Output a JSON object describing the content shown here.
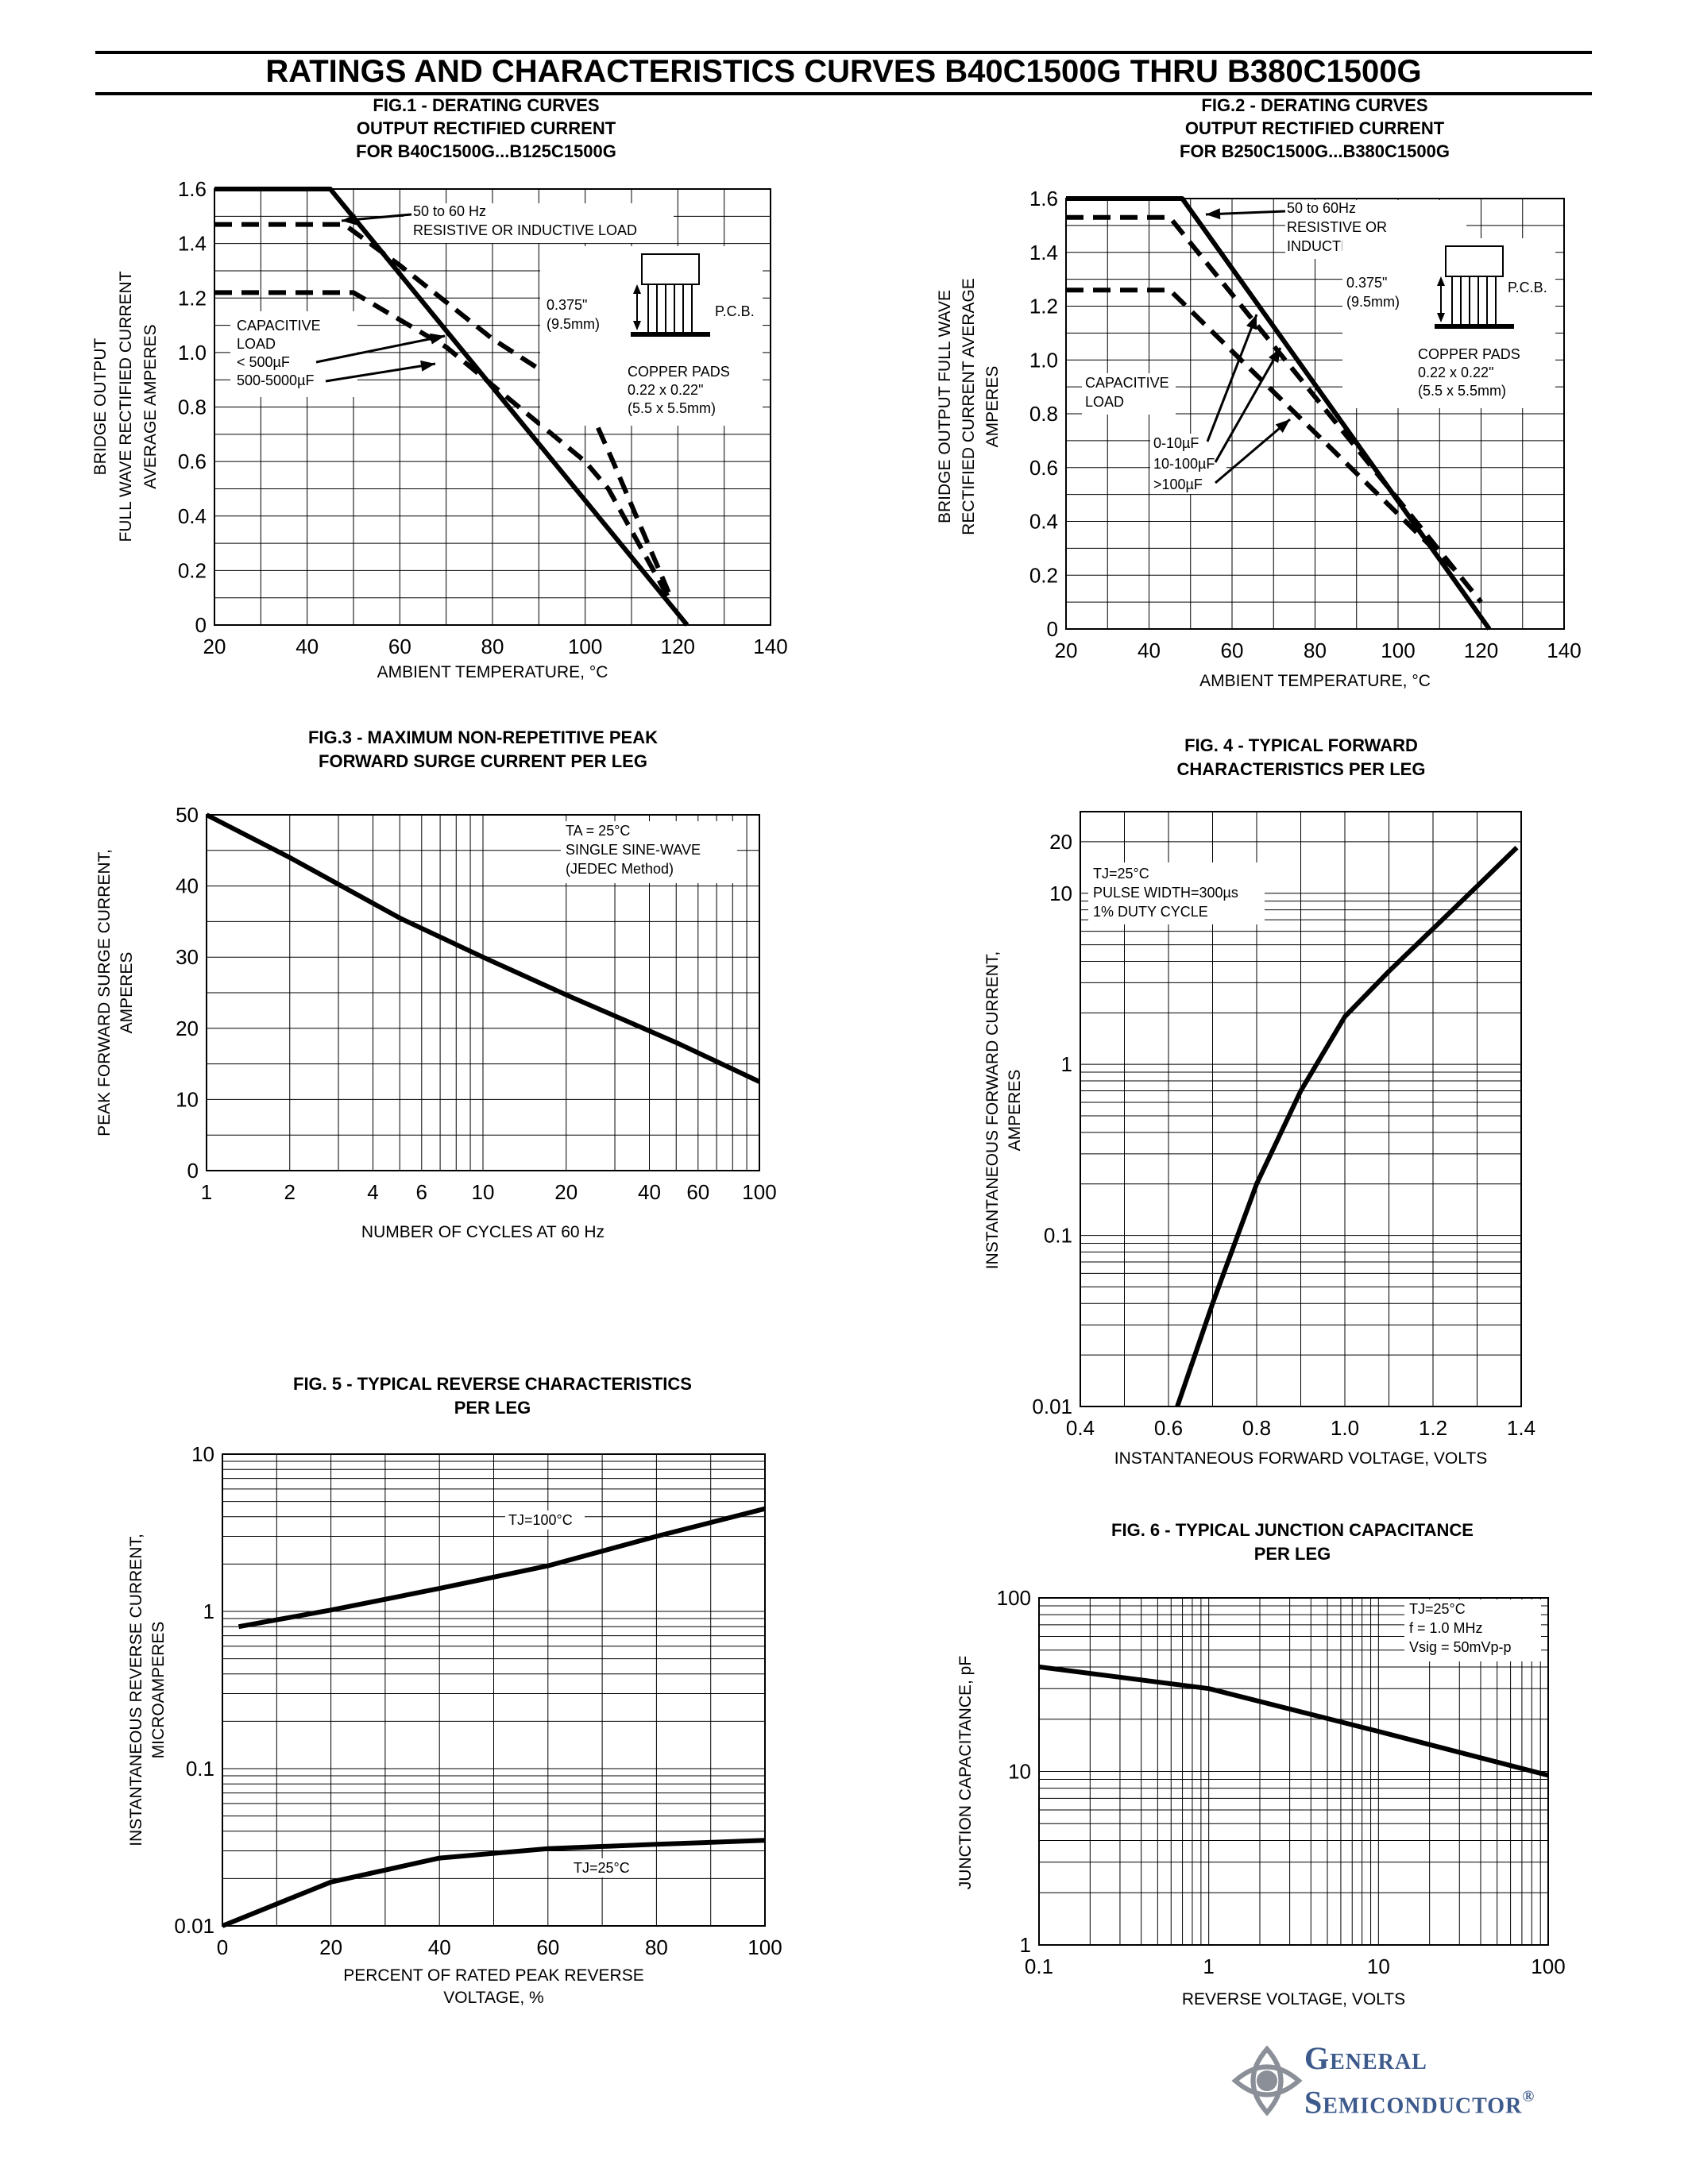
{
  "page": {
    "title": "RATINGS AND CHARACTERISTICS CURVES B40C1500G THRU B380C1500G"
  },
  "logo": {
    "line1": "General",
    "line2": "Semiconductor",
    "registered": "®",
    "color": "#3d5a8c"
  },
  "chart_data": [
    {
      "id": "fig1",
      "type": "line",
      "title": [
        "FIG.1 - DERATING CURVES",
        "OUTPUT RECTIFIED CURRENT",
        "FOR B40C1500G...B125C1500G"
      ],
      "xlabel": "AMBIENT TEMPERATURE, °C",
      "ylabel": [
        "BRIDGE OUTPUT",
        "FULL WAVE RECTIFIED CURRENT",
        "AVERAGE AMPERES"
      ],
      "xlim": [
        20,
        140
      ],
      "ylim": [
        0,
        1.6
      ],
      "x_ticks": [
        20,
        40,
        60,
        80,
        100,
        120,
        140
      ],
      "y_ticks": [
        0,
        0.2,
        0.4,
        0.6,
        0.8,
        1.0,
        1.2,
        1.4,
        1.6
      ],
      "y_tick_labels": [
        "0",
        "0.2",
        "0.4",
        "0.6",
        "0.8",
        "1.0",
        "1.2",
        "1.4",
        "1.6"
      ],
      "grid": true,
      "series": [
        {
          "style": "solid",
          "x": [
            20,
            45,
            122
          ],
          "y": [
            1.6,
            1.6,
            0
          ]
        },
        {
          "style": "dashed",
          "x": [
            20,
            48,
            60,
            80,
            100,
            106,
            118
          ],
          "y": [
            1.47,
            1.47,
            1.32,
            1.05,
            0.83,
            0.6,
            0.12
          ]
        },
        {
          "style": "dashed",
          "x": [
            20,
            50,
            70,
            80,
            100,
            105,
            118
          ],
          "y": [
            1.22,
            1.22,
            1.02,
            0.88,
            0.6,
            0.5,
            0.1
          ]
        }
      ],
      "annotations": [
        "50 to 60 Hz",
        "RESISTIVE OR INDUCTIVE LOAD",
        "CAPACITIVE",
        "LOAD",
        "< 500µF",
        "500-5000µF",
        "0.375\"",
        "(9.5mm)",
        "P.C.B.",
        "COPPER PADS",
        "0.22 x 0.22\"",
        "(5.5 x 5.5mm)"
      ]
    },
    {
      "id": "fig2",
      "type": "line",
      "title": [
        "FIG.2 - DERATING CURVES",
        "OUTPUT RECTIFIED CURRENT",
        "FOR B250C1500G...B380C1500G"
      ],
      "xlabel": "AMBIENT TEMPERATURE, °C",
      "ylabel": [
        "BRIDGE OUTPUT FULL WAVE",
        "RECTIFIED CURRENT AVERAGE",
        "AMPERES"
      ],
      "xlim": [
        20,
        140
      ],
      "ylim": [
        0,
        1.6
      ],
      "x_ticks": [
        20,
        40,
        60,
        80,
        100,
        120,
        140
      ],
      "y_ticks": [
        0,
        0.2,
        0.4,
        0.6,
        0.8,
        1.0,
        1.2,
        1.4,
        1.6
      ],
      "y_tick_labels": [
        "0",
        "0.2",
        "0.4",
        "0.6",
        "0.8",
        "1.0",
        "1.2",
        "1.4",
        "1.6"
      ],
      "grid": true,
      "series": [
        {
          "style": "solid",
          "x": [
            20,
            48,
            122
          ],
          "y": [
            1.6,
            1.6,
            0
          ]
        },
        {
          "style": "dashed",
          "x": [
            20,
            45,
            120
          ],
          "y": [
            1.53,
            1.53,
            0.1
          ]
        },
        {
          "style": "dashed",
          "x": [
            20,
            45,
            115
          ],
          "y": [
            1.26,
            1.26,
            0.2
          ]
        }
      ],
      "annotations": [
        "50 to 60Hz",
        "RESISTIVE OR",
        "INDUCTIVE LOAD",
        "CAPACITIVE",
        "LOAD",
        "0-10µF",
        "10-100µF",
        ">100µF",
        "0.375\"",
        "(9.5mm)",
        "P.C.B.",
        "COPPER PADS",
        "0.22 x 0.22\"",
        "(5.5 x 5.5mm)"
      ]
    },
    {
      "id": "fig3",
      "type": "line",
      "title": [
        "FIG.3 - MAXIMUM NON-REPETITIVE PEAK",
        "FORWARD SURGE CURRENT PER LEG"
      ],
      "xlabel": "NUMBER OF CYCLES AT 60 Hz",
      "ylabel": [
        "PEAK FORWARD SURGE CURRENT,",
        "AMPERES"
      ],
      "xscale": "log",
      "xlim": [
        1,
        100
      ],
      "ylim": [
        0,
        50
      ],
      "x_ticks": [
        1,
        2,
        4,
        6,
        10,
        20,
        40,
        60,
        100
      ],
      "y_ticks": [
        0,
        10,
        20,
        30,
        40,
        50
      ],
      "y_tick_labels": [
        "0",
        "10",
        "20",
        "30",
        "40",
        "50"
      ],
      "grid": true,
      "series": [
        {
          "style": "solid",
          "x": [
            1,
            2,
            5,
            10,
            20,
            50,
            100
          ],
          "y": [
            50,
            44,
            35.5,
            30,
            24.7,
            18,
            12.5
          ]
        }
      ],
      "annotations": [
        "TA = 25°C",
        "SINGLE SINE-WAVE",
        "(JEDEC Method)"
      ]
    },
    {
      "id": "fig4",
      "type": "line",
      "title": [
        "FIG. 4 - TYPICAL FORWARD",
        "CHARACTERISTICS PER LEG"
      ],
      "xlabel": "INSTANTANEOUS FORWARD VOLTAGE, VOLTS",
      "ylabel": [
        "INSTANTANEOUS FORWARD CURRENT,",
        "AMPERES"
      ],
      "yscale": "log",
      "xlim": [
        0.4,
        1.4
      ],
      "ylim": [
        0.01,
        30
      ],
      "x_ticks": [
        0.4,
        0.6,
        0.8,
        1.0,
        1.2,
        1.4
      ],
      "x_tick_labels": [
        "0.4",
        "0.6",
        "0.8",
        "1.0",
        "1.2",
        "1.4"
      ],
      "y_ticks": [
        0.01,
        0.1,
        1,
        10,
        20
      ],
      "y_tick_labels": [
        "0.01",
        "0.1",
        "1",
        "10",
        "20"
      ],
      "grid": true,
      "series": [
        {
          "style": "solid",
          "x": [
            0.62,
            0.7,
            0.8,
            0.9,
            1.0,
            1.1,
            1.2,
            1.3,
            1.39
          ],
          "y": [
            0.01,
            0.04,
            0.2,
            0.7,
            1.9,
            3.5,
            6.2,
            11,
            18.5
          ]
        }
      ],
      "annotations": [
        "TJ=25°C",
        "PULSE WIDTH=300µs",
        "1% DUTY CYCLE"
      ]
    },
    {
      "id": "fig5",
      "type": "line",
      "title": [
        "FIG. 5 - TYPICAL REVERSE CHARACTERISTICS",
        "PER LEG"
      ],
      "xlabel": [
        "PERCENT OF RATED PEAK REVERSE",
        "VOLTAGE, %"
      ],
      "ylabel": [
        "INSTANTANEOUS REVERSE CURRENT,",
        "MICROAMPERES"
      ],
      "yscale": "log",
      "xlim": [
        0,
        100
      ],
      "ylim": [
        0.01,
        10
      ],
      "x_ticks": [
        0,
        20,
        40,
        60,
        80,
        100
      ],
      "y_ticks": [
        0.01,
        0.1,
        1,
        10
      ],
      "y_tick_labels": [
        "0.01",
        "0.1",
        "1",
        "10"
      ],
      "grid": true,
      "series": [
        {
          "name": "TJ=100°C",
          "style": "solid",
          "x": [
            3,
            20,
            40,
            60,
            80,
            100
          ],
          "y": [
            0.8,
            1.02,
            1.4,
            1.95,
            3,
            4.5
          ]
        },
        {
          "name": "TJ=25°C",
          "style": "solid",
          "x": [
            0,
            20,
            40,
            60,
            80,
            100
          ],
          "y": [
            0.01,
            0.019,
            0.027,
            0.031,
            0.033,
            0.035
          ]
        }
      ]
    },
    {
      "id": "fig6",
      "type": "line",
      "title": [
        "FIG. 6 - TYPICAL JUNCTION CAPACITANCE",
        "PER LEG"
      ],
      "xlabel": "REVERSE VOLTAGE, VOLTS",
      "ylabel": [
        "JUNCTION CAPACITANCE, pF"
      ],
      "xscale": "log",
      "yscale": "log",
      "xlim": [
        0.1,
        100
      ],
      "ylim": [
        1,
        100
      ],
      "x_ticks": [
        0.1,
        1,
        10,
        100
      ],
      "x_tick_labels": [
        "0.1",
        "1",
        "10",
        "100"
      ],
      "y_ticks": [
        1,
        10,
        100
      ],
      "y_tick_labels": [
        "1",
        "10",
        "100"
      ],
      "grid": true,
      "series": [
        {
          "style": "solid",
          "x": [
            0.1,
            1,
            10,
            100
          ],
          "y": [
            40,
            30,
            17,
            9.5
          ]
        }
      ],
      "annotations": [
        "TJ=25°C",
        "f = 1.0 MHz",
        "Vsig = 50mVp-p"
      ]
    }
  ]
}
